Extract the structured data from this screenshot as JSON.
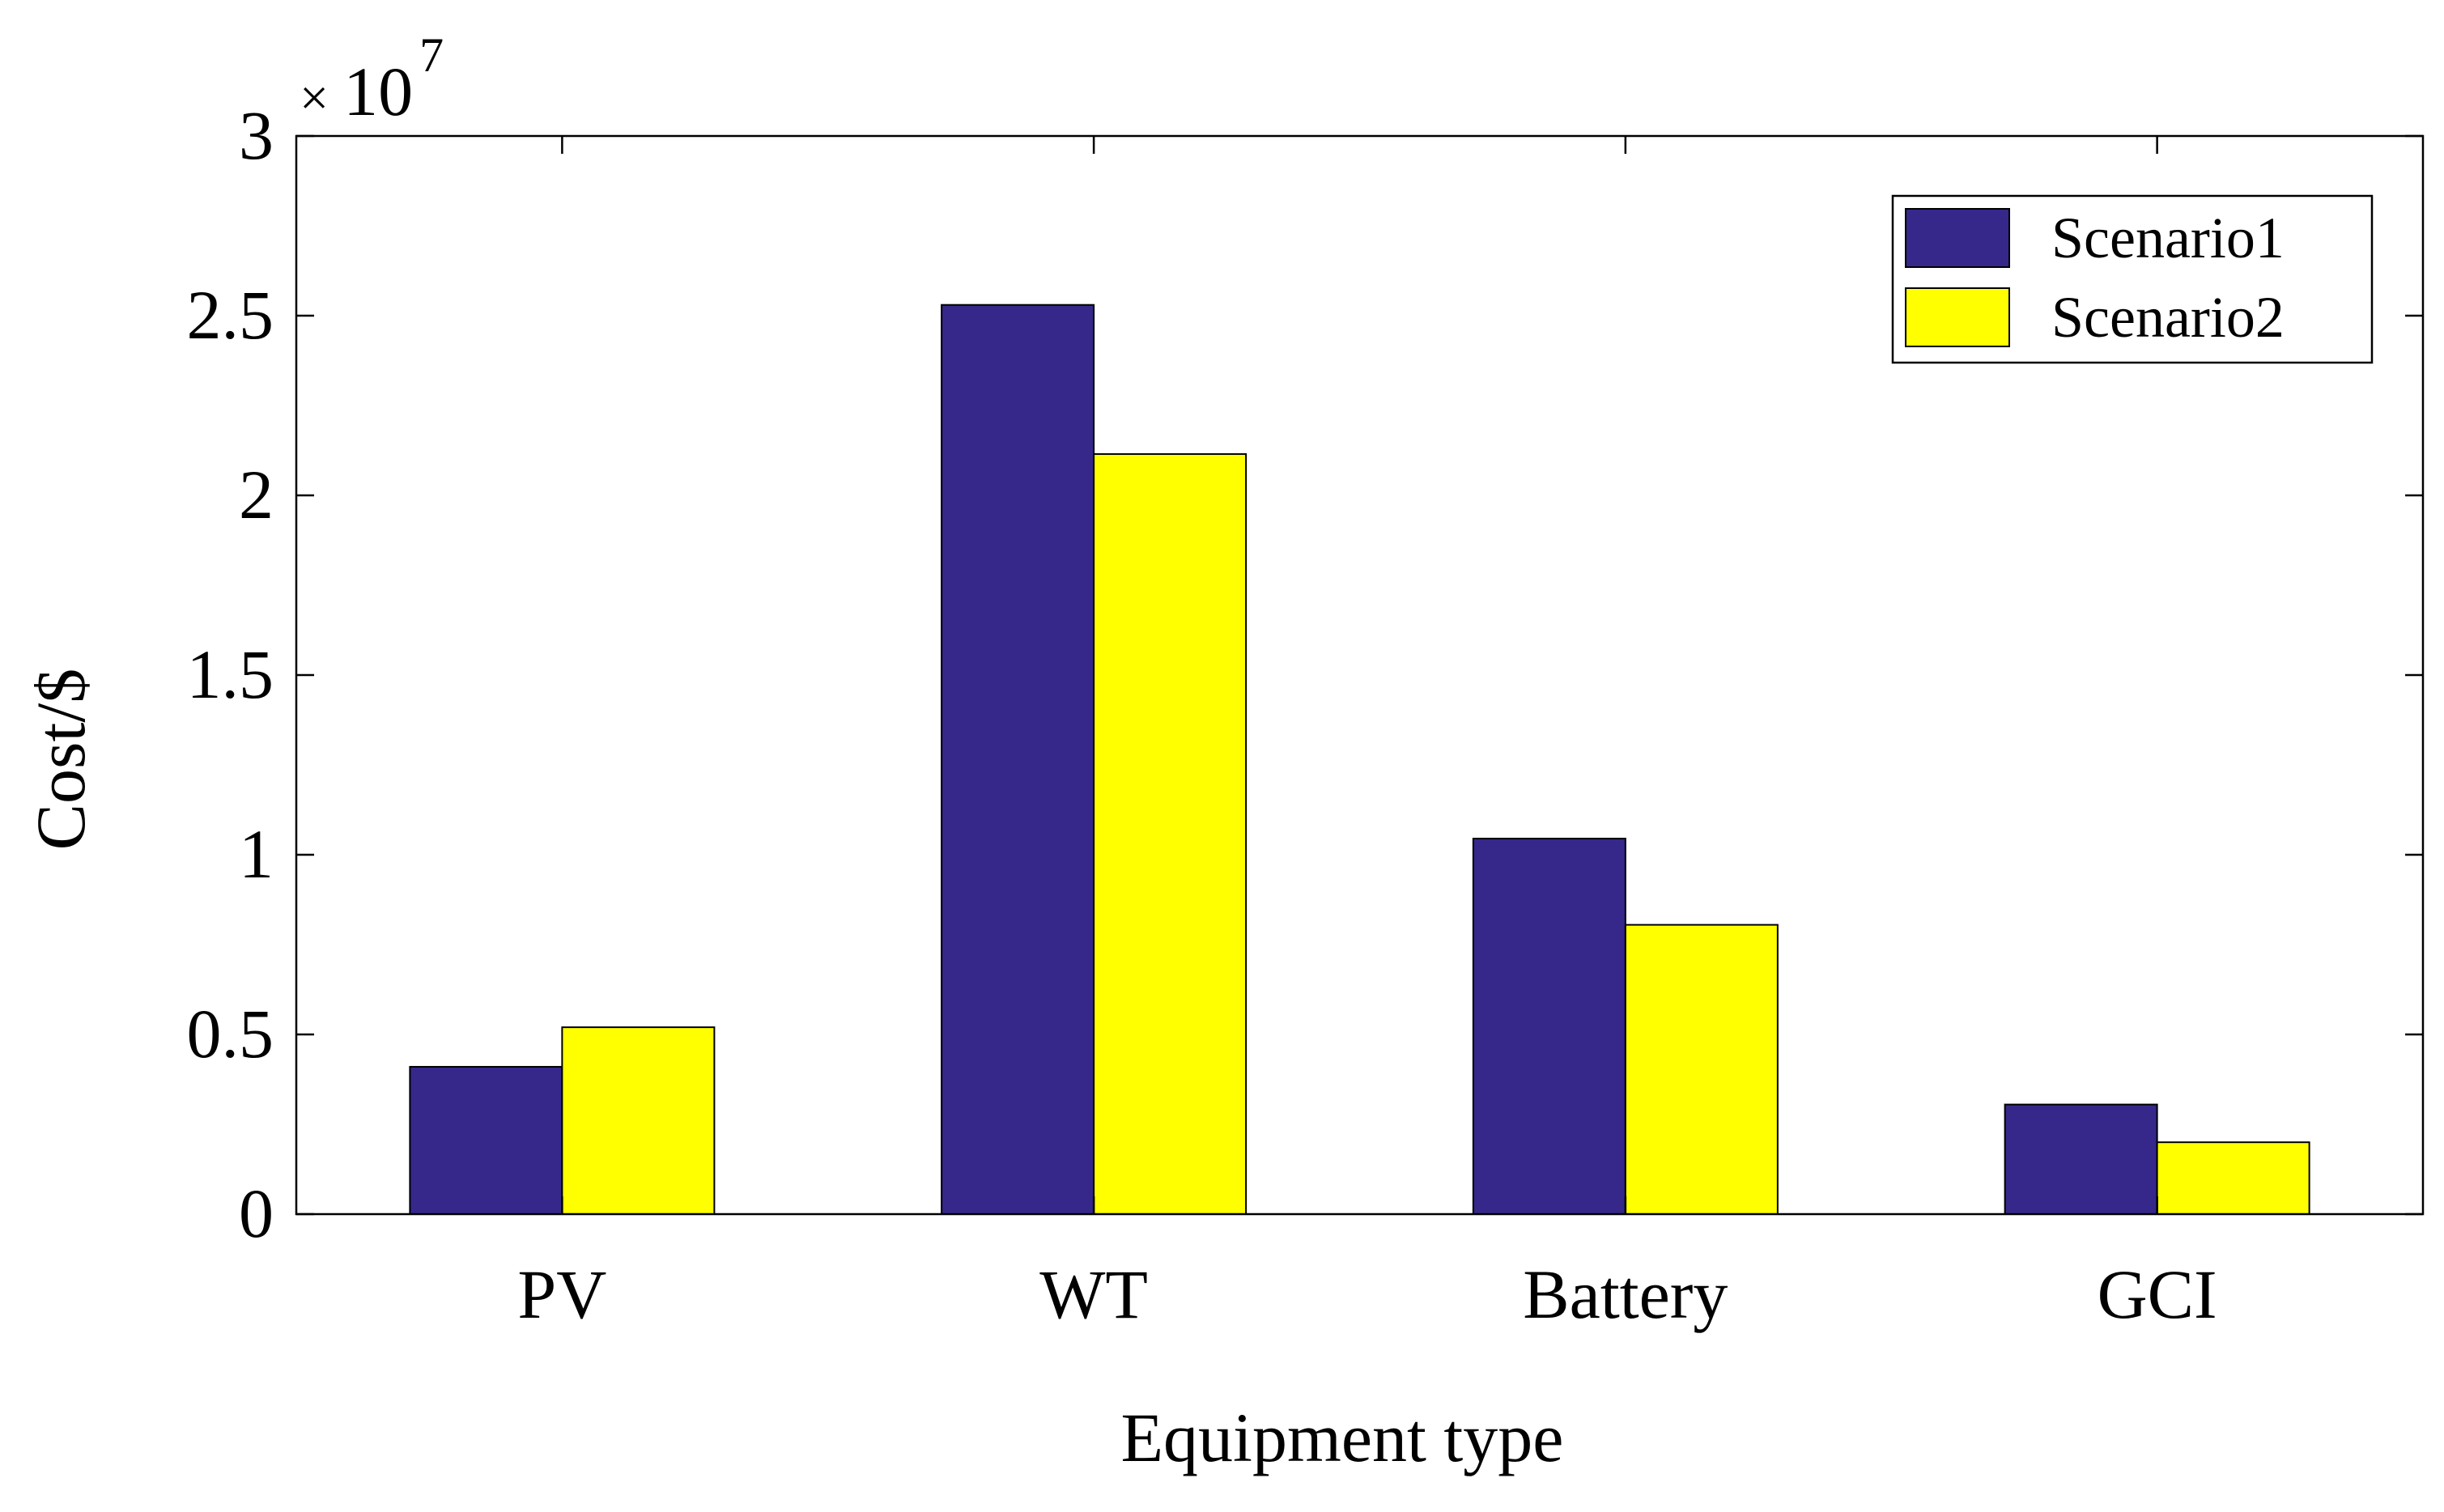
{
  "chart_data": {
    "type": "bar",
    "categories": [
      "PV",
      "WT",
      "Battery",
      "GCI"
    ],
    "series": [
      {
        "name": "Scenario1",
        "color": "#35288A",
        "values": [
          4100000,
          25300000,
          10450000,
          3050000
        ]
      },
      {
        "name": "Scenario2",
        "color": "#FFFF00",
        "values": [
          5200000,
          21150000,
          8050000,
          2000000
        ]
      }
    ],
    "xlabel": "Equipment type",
    "ylabel": "Cost/$",
    "ylim": [
      0,
      30000000
    ],
    "yticks": [
      0,
      5000000,
      10000000,
      15000000,
      20000000,
      25000000,
      30000000
    ],
    "ytick_labels": [
      "0",
      "0.5",
      "1",
      "1.5",
      "2",
      "2.5",
      "3"
    ],
    "exponent": {
      "base": "10",
      "power": "7"
    },
    "legend_position": "top-right",
    "grid": false
  }
}
